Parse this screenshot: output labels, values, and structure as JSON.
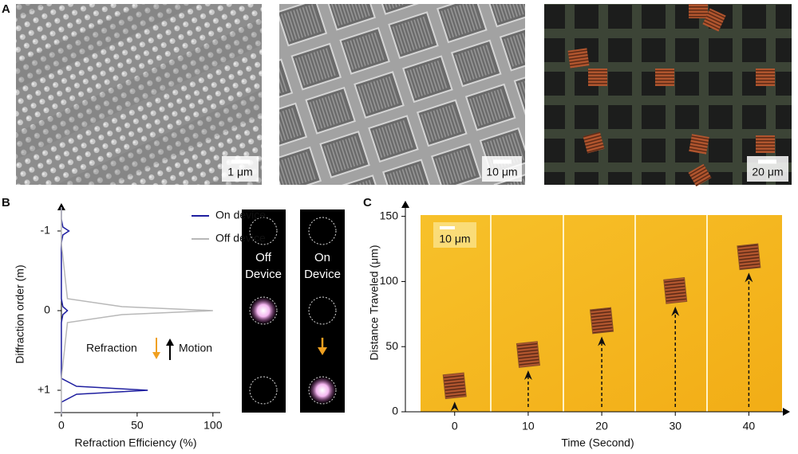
{
  "panel_labels": [
    "A",
    "B",
    "C"
  ],
  "panel_a": {
    "scale_bars": [
      "1 μm",
      "10 μm",
      "20 μm"
    ]
  },
  "panel_b_images": {
    "labels": [
      [
        "Off",
        "Device"
      ],
      [
        "On",
        "Device"
      ]
    ]
  },
  "chart_data": [
    {
      "type": "line",
      "orientation": "horizontal",
      "y_axis_label": "Diffraction order (m)",
      "x_axis_label": "Refraction Efficiency (%)",
      "y": [
        -1.3,
        -1.15,
        -1.05,
        -1,
        -0.95,
        -0.85,
        -0.15,
        -0.05,
        0,
        0.05,
        0.15,
        0.85,
        0.95,
        1,
        1.05,
        1.15,
        1.3
      ],
      "series": [
        {
          "name": "On device",
          "color": "#1f1fa0",
          "values": [
            0,
            0,
            1,
            5,
            1,
            0,
            0,
            1,
            4,
            1,
            0,
            0,
            10,
            57,
            10,
            0,
            0
          ]
        },
        {
          "name": "Off device",
          "color": "#b8b8b8",
          "values": [
            0,
            0,
            0,
            0,
            0,
            0,
            4,
            40,
            100,
            40,
            4,
            0,
            0,
            0,
            0,
            0,
            0
          ]
        }
      ],
      "ylim": [
        -1.35,
        1.28
      ],
      "y_inverted": true,
      "yticks": [
        -1,
        0,
        {
          "value": 1,
          "label": "+1"
        }
      ],
      "xlim": [
        -4.7,
        108
      ],
      "xticks": [
        0,
        50,
        100
      ],
      "legend": "upper right",
      "annotations": [
        "Refraction",
        "Motion"
      ]
    },
    {
      "type": "scatter",
      "y_axis_label": "Distance Traveled (μm)",
      "x_axis_label": "Time (Second)",
      "x": [
        0,
        10,
        20,
        30,
        40
      ],
      "values": [
        20,
        44,
        70,
        93,
        119
      ],
      "color": "#8a5228",
      "xlim": [
        -6.7,
        45.6
      ],
      "ylim": [
        0,
        162
      ],
      "xticks": [
        0,
        10,
        20,
        30,
        40
      ],
      "yticks": [
        0,
        50,
        100,
        150
      ],
      "scale_bar": "10 μm"
    }
  ]
}
